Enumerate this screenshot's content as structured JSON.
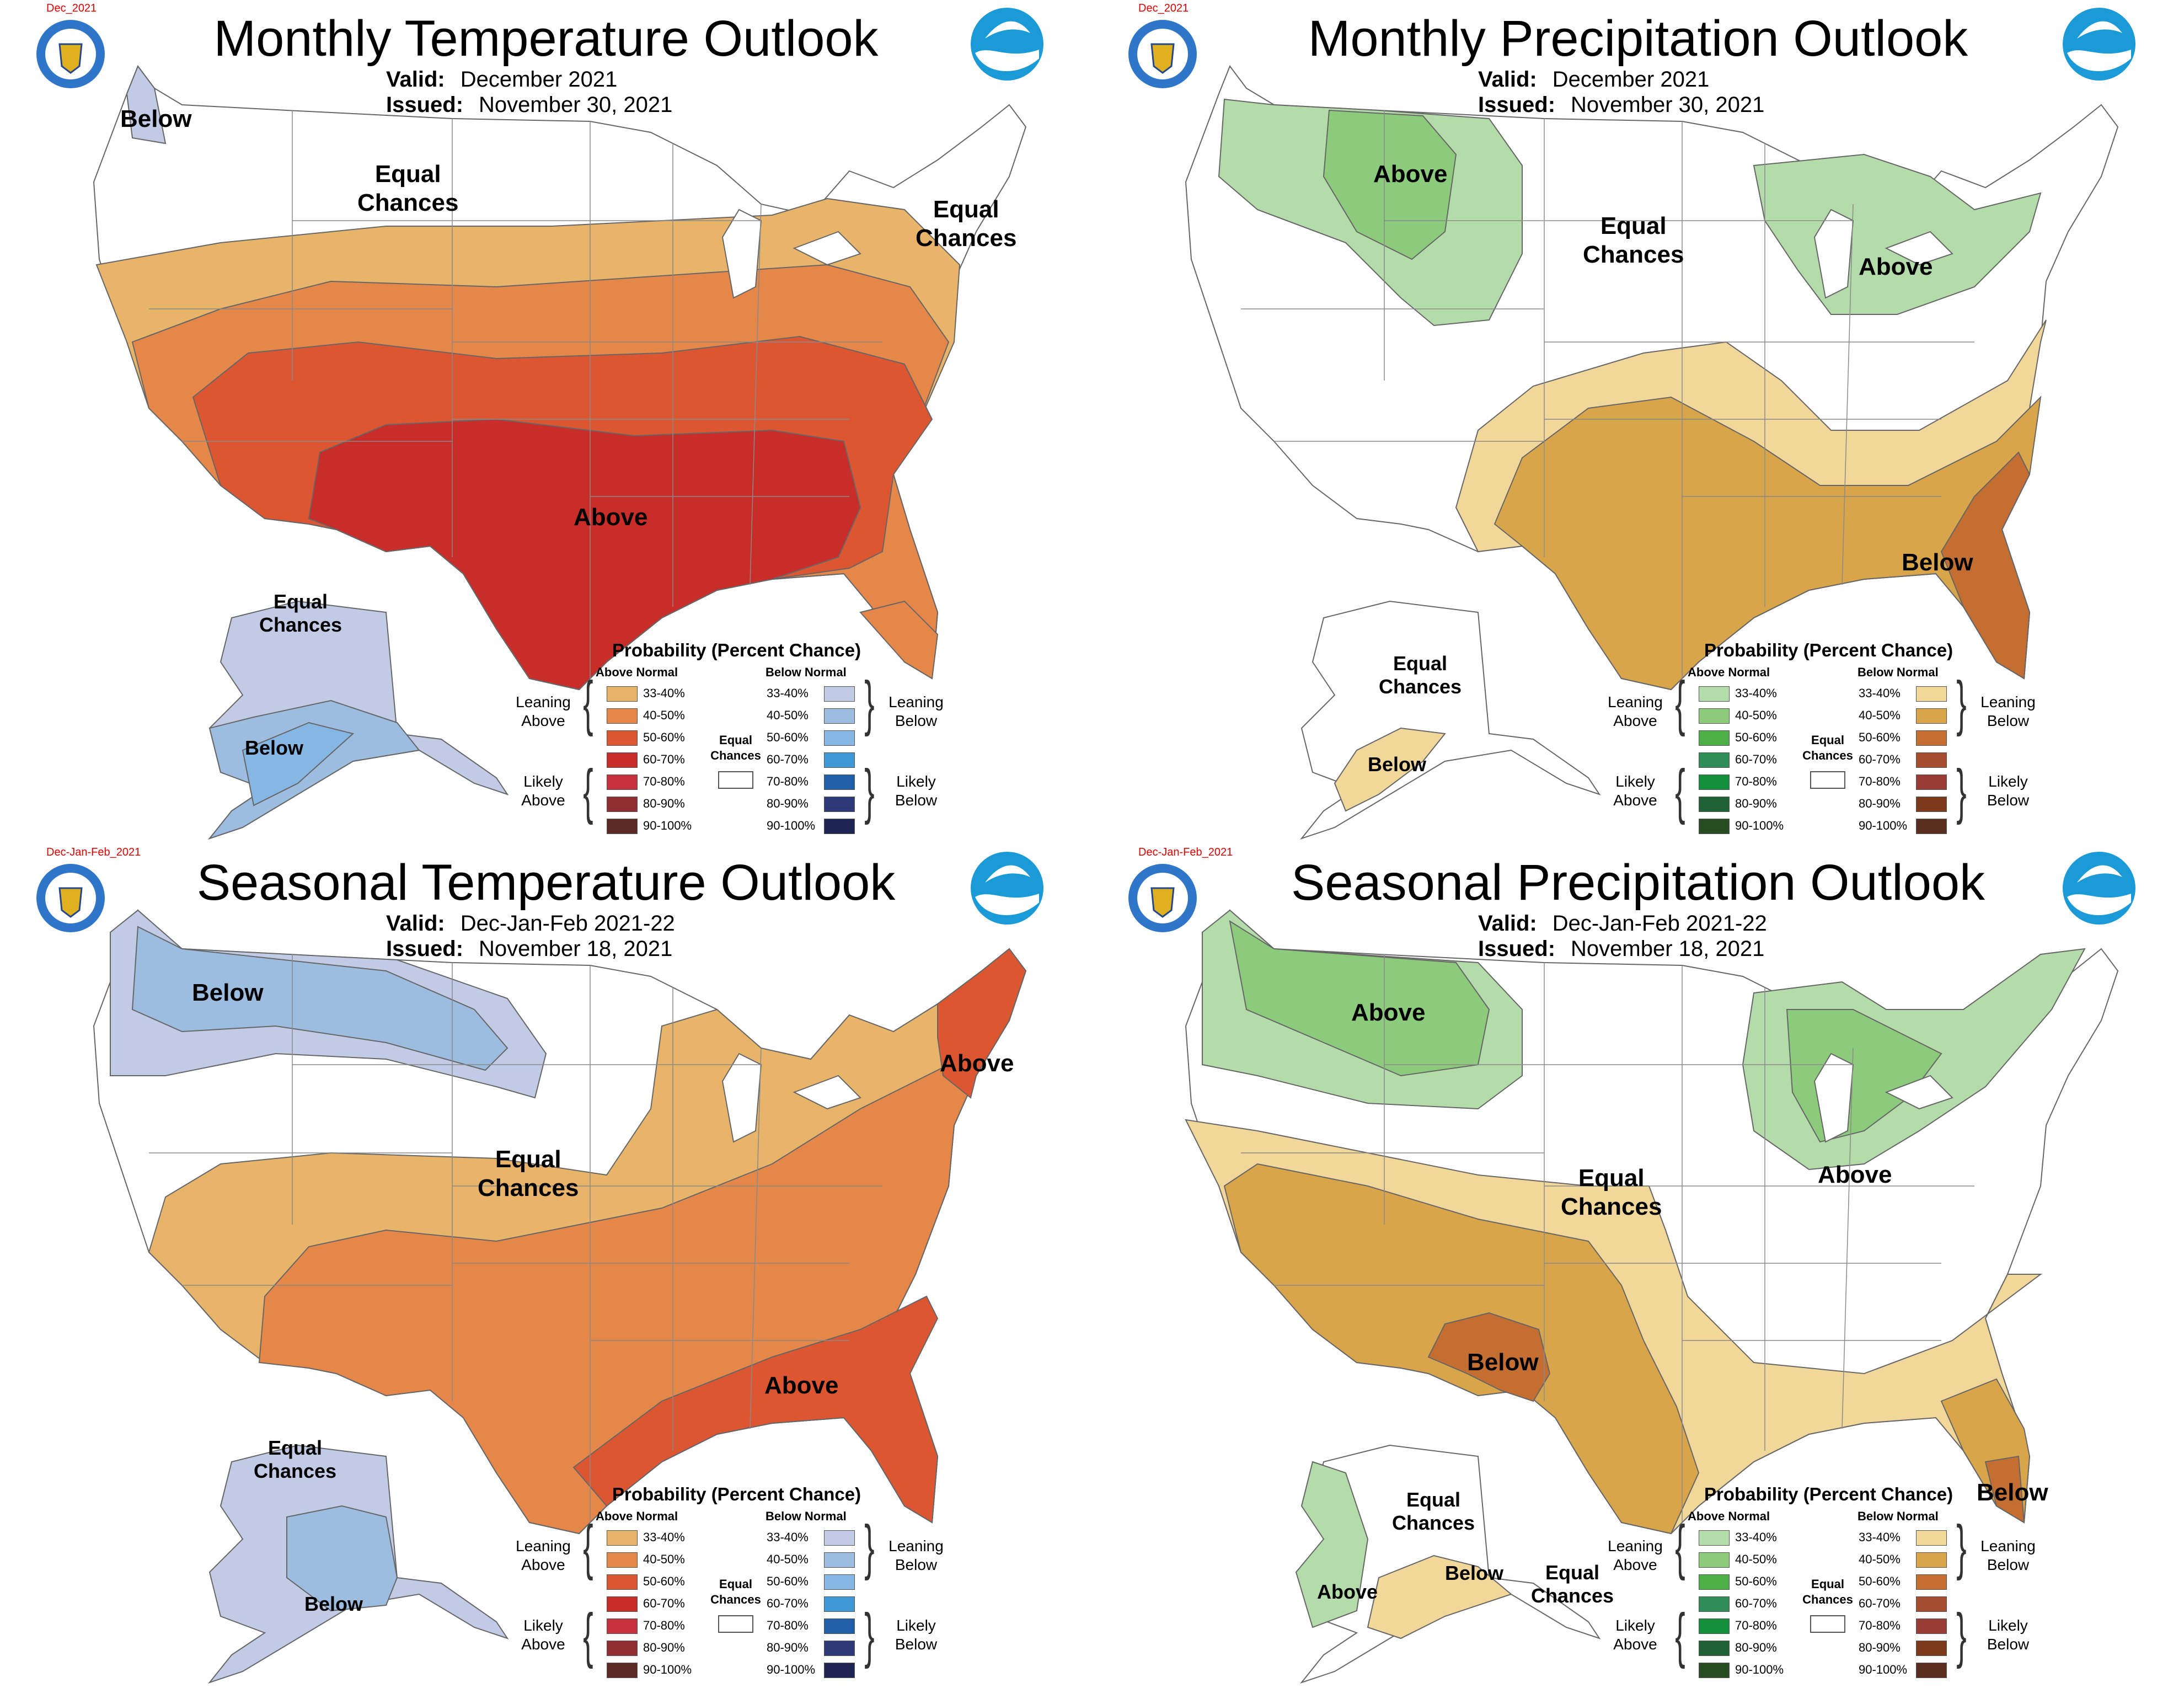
{
  "colors": {
    "temp_above": [
      "#e8b46a",
      "#e6874a",
      "#dd5632",
      "#c92d2a",
      "#c9303e",
      "#8f2f34",
      "#5b2a24"
    ],
    "temp_below": [
      "#c1cbe6",
      "#9dbde0",
      "#86b7e4",
      "#3f97d4",
      "#1e5fa8",
      "#2c3a78",
      "#1f2552"
    ],
    "precip_above": [
      "#b3dcaa",
      "#8ccb7b",
      "#4eae48",
      "#2f8e57",
      "#138e3a",
      "#1e6236",
      "#2a4c22"
    ],
    "precip_below": [
      "#f2d79a",
      "#d9a54a",
      "#c46e32",
      "#a34c2e",
      "#9a3c36",
      "#7c3a1c",
      "#5b2e22"
    ],
    "state_line": "#8a8a8a",
    "boundary": "#666666"
  },
  "icons": [
    "commerce-seal-icon",
    "noaa-logo-icon"
  ],
  "panels": [
    {
      "id": "monthly-temp",
      "title": "Monthly Temperature Outlook",
      "tag": "Dec_2021",
      "valid_label": "Valid:",
      "valid": "December 2021",
      "issued_label": "Issued:",
      "issued": "November 30, 2021",
      "labels": [
        "Below",
        "Equal\nChances",
        "Equal\nChances",
        "Above",
        "Equal\nChances",
        "Below"
      ]
    },
    {
      "id": "monthly-precip",
      "title": "Monthly Precipitation Outlook",
      "tag": "Dec_2021",
      "valid_label": "Valid:",
      "valid": "December 2021",
      "issued_label": "Issued:",
      "issued": "November 30, 2021",
      "labels": [
        "Above",
        "Equal\nChances",
        "Above",
        "Below",
        "Equal\nChances",
        "Below"
      ]
    },
    {
      "id": "seasonal-temp",
      "title": "Seasonal Temperature Outlook",
      "tag": "Dec-Jan-Feb_2021",
      "valid_label": "Valid:",
      "valid": "Dec-Jan-Feb 2021-22",
      "issued_label": "Issued:",
      "issued": "November 18, 2021",
      "labels": [
        "Below",
        "Above",
        "Equal\nChances",
        "Above",
        "Equal\nChances",
        "Below"
      ]
    },
    {
      "id": "seasonal-precip",
      "title": "Seasonal Precipitation Outlook",
      "tag": "Dec-Jan-Feb_2021",
      "valid_label": "Valid:",
      "valid": "Dec-Jan-Feb 2021-22",
      "issued_label": "Issued:",
      "issued": "November 18, 2021",
      "labels": [
        "Above",
        "Equal\nChances",
        "Above",
        "Below",
        "Below",
        "Equal\nChances",
        "Above",
        "Below",
        "Equal\nChances"
      ]
    }
  ],
  "legend": {
    "title": "Probability (Percent Chance)",
    "above_header": "Above Normal",
    "below_header": "Below Normal",
    "percents": [
      "33-40%",
      "40-50%",
      "50-60%",
      "60-70%",
      "70-80%",
      "80-90%",
      "90-100%"
    ],
    "leaning_above": "Leaning\nAbove",
    "likely_above": "Likely\nAbove",
    "leaning_below": "Leaning\nBelow",
    "likely_below": "Likely\nBelow",
    "equal_chances": "Equal\nChances"
  }
}
